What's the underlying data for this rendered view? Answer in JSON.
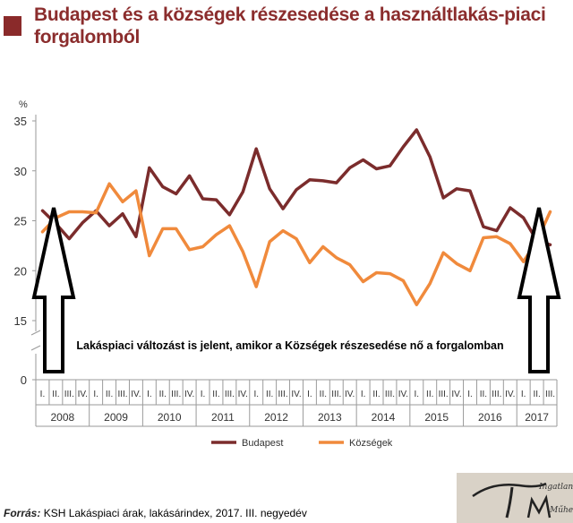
{
  "title": "Budapest és a községek részesedése a használtlakás-piaci forgalomból",
  "source_label": "Forrás:",
  "source_text": "KSH Lakáspiaci árak, lakásárindex, 2017. III. negyedév",
  "annotation": "Lakáspiaci változást is jelent, amikor a Községek részesedése nő a forgalomban",
  "logo_text": [
    "Ingatlan",
    "Műhely"
  ],
  "colors": {
    "title": "#8b2d2d",
    "budapest": "#7b2c2c",
    "kozsegek": "#f08a3c",
    "axis": "#9a9a9a"
  },
  "chart_data": {
    "type": "line",
    "ylabel": "%",
    "yticks": [
      0,
      15,
      20,
      25,
      30,
      35
    ],
    "ylim": [
      13,
      35
    ],
    "axis_break": true,
    "grid": false,
    "legend_position": "bottom-center",
    "years": [
      "2008",
      "2009",
      "2010",
      "2011",
      "2012",
      "2013",
      "2014",
      "2015",
      "2016",
      "2017"
    ],
    "quarters": [
      "I.",
      "II.",
      "III.",
      "IV.",
      "I.",
      "II.",
      "III.",
      "IV.",
      "I.",
      "II.",
      "III.",
      "IV.",
      "I.",
      "II.",
      "III.",
      "IV.",
      "I.",
      "II.",
      "III.",
      "IV.",
      "I.",
      "II.",
      "III.",
      "IV.",
      "I.",
      "II.",
      "III.",
      "IV.",
      "I.",
      "II.",
      "III.",
      "IV.",
      "I.",
      "II.",
      "III.",
      "IV.",
      "I.",
      "II.",
      "III."
    ],
    "series": [
      {
        "name": "Budapest",
        "values": [
          26.0,
          24.7,
          23.2,
          24.8,
          26.0,
          24.5,
          25.7,
          23.4,
          30.3,
          28.4,
          27.7,
          29.5,
          27.2,
          27.1,
          25.6,
          27.9,
          32.2,
          28.2,
          26.2,
          28.1,
          29.1,
          29.0,
          28.8,
          30.3,
          31.1,
          30.2,
          30.5,
          32.4,
          34.1,
          31.4,
          27.3,
          28.2,
          28.0,
          24.4,
          24.0,
          26.3,
          25.3,
          23.0,
          22.6
        ]
      },
      {
        "name": "Községek",
        "values": [
          23.9,
          25.3,
          25.9,
          25.9,
          25.8,
          28.7,
          26.9,
          28.0,
          21.5,
          24.2,
          24.2,
          22.1,
          22.4,
          23.6,
          24.5,
          21.9,
          18.4,
          22.9,
          24.0,
          23.2,
          20.8,
          22.4,
          21.3,
          20.6,
          18.9,
          19.8,
          19.7,
          19.0,
          16.6,
          18.7,
          21.8,
          20.7,
          20.0,
          23.3,
          23.4,
          22.7,
          20.9,
          23.0,
          25.9
        ]
      }
    ]
  }
}
